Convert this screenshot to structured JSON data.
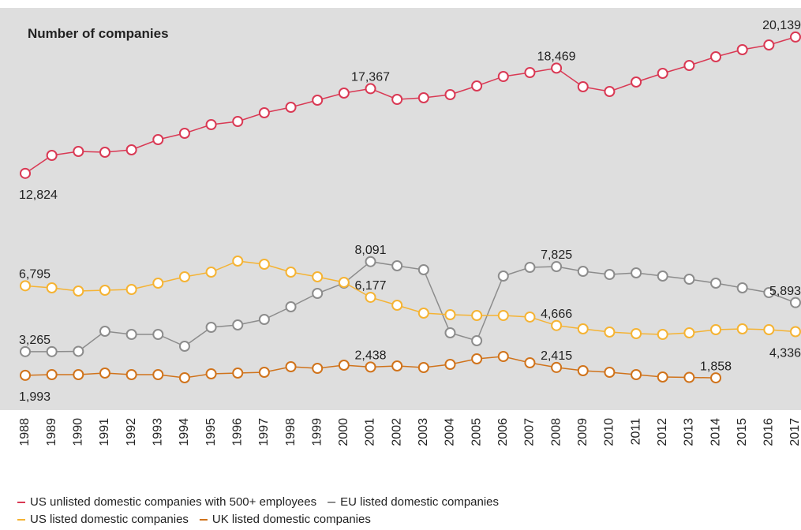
{
  "chart_data": {
    "type": "line",
    "title": "Number of companies",
    "categories": [
      "1988",
      "1989",
      "1990",
      "1991",
      "1992",
      "1993",
      "1994",
      "1995",
      "1996",
      "1997",
      "1998",
      "1999",
      "2000",
      "2001",
      "2002",
      "2003",
      "2004",
      "2005",
      "2006",
      "2007",
      "2008",
      "2009",
      "2010",
      "2011",
      "2012",
      "2013",
      "2014",
      "2015",
      "2016",
      "2017"
    ],
    "ylim": [
      0,
      21700
    ],
    "series": [
      {
        "name": "US unlisted domestic companies with 500+ employees",
        "color": "#d93954",
        "values": [
          12824,
          13790,
          14001,
          13959,
          14086,
          14636,
          14974,
          15440,
          15609,
          16074,
          16370,
          16751,
          17132,
          17367,
          16793,
          16878,
          17047,
          17512,
          18020,
          18231,
          18469,
          17470,
          17216,
          17724,
          18189,
          18612,
          19077,
          19458,
          19712,
          20139
        ],
        "value_labels": [
          "12,824",
          null,
          null,
          null,
          null,
          null,
          null,
          null,
          null,
          null,
          null,
          null,
          null,
          "17,367",
          null,
          null,
          null,
          null,
          null,
          null,
          "18,469",
          null,
          null,
          null,
          null,
          null,
          null,
          null,
          null,
          "20,139"
        ]
      },
      {
        "name": "EU listed domestic companies",
        "color": "#8c8c8c",
        "values": [
          3265,
          3265,
          3280,
          4357,
          4188,
          4188,
          3553,
          4568,
          4695,
          4991,
          5668,
          6387,
          6937,
          8091,
          7868,
          7656,
          4272,
          3849,
          7318,
          7783,
          7825,
          7572,
          7403,
          7487,
          7318,
          7149,
          6937,
          6683,
          6430,
          5893
        ],
        "value_labels": [
          "3,265",
          null,
          null,
          null,
          null,
          null,
          null,
          null,
          null,
          null,
          null,
          null,
          null,
          "8,091",
          null,
          null,
          null,
          null,
          null,
          null,
          "7,825",
          null,
          null,
          null,
          null,
          null,
          null,
          null,
          null,
          "5,893"
        ]
      },
      {
        "name": "US listed domestic companies",
        "color": "#f5b333",
        "values": [
          6795,
          6683,
          6514,
          6557,
          6599,
          6937,
          7276,
          7529,
          8122,
          7952,
          7529,
          7276,
          6980,
          6177,
          5753,
          5330,
          5245,
          5203,
          5203,
          5120,
          4666,
          4484,
          4315,
          4230,
          4188,
          4272,
          4442,
          4484,
          4442,
          4336
        ],
        "value_labels": [
          "6,795",
          null,
          null,
          null,
          null,
          null,
          null,
          null,
          null,
          null,
          null,
          null,
          null,
          "6,177",
          null,
          null,
          null,
          null,
          null,
          null,
          "4,666",
          null,
          null,
          null,
          null,
          null,
          null,
          null,
          null,
          "4,336"
        ]
      },
      {
        "name": "UK listed domestic companies",
        "color": "#d0731b",
        "values": [
          1993,
          2030,
          2030,
          2115,
          2030,
          2030,
          1861,
          2073,
          2115,
          2157,
          2453,
          2369,
          2538,
          2438,
          2496,
          2411,
          2580,
          2876,
          3003,
          2665,
          2415,
          2242,
          2157,
          2030,
          1903,
          1880,
          1858,
          null,
          null,
          null
        ],
        "value_labels": [
          "1,993",
          null,
          null,
          null,
          null,
          null,
          null,
          null,
          null,
          null,
          null,
          null,
          null,
          "2,438",
          null,
          null,
          null,
          null,
          null,
          null,
          "2,415",
          null,
          null,
          null,
          null,
          null,
          "1,858",
          null,
          null,
          null
        ]
      }
    ]
  }
}
